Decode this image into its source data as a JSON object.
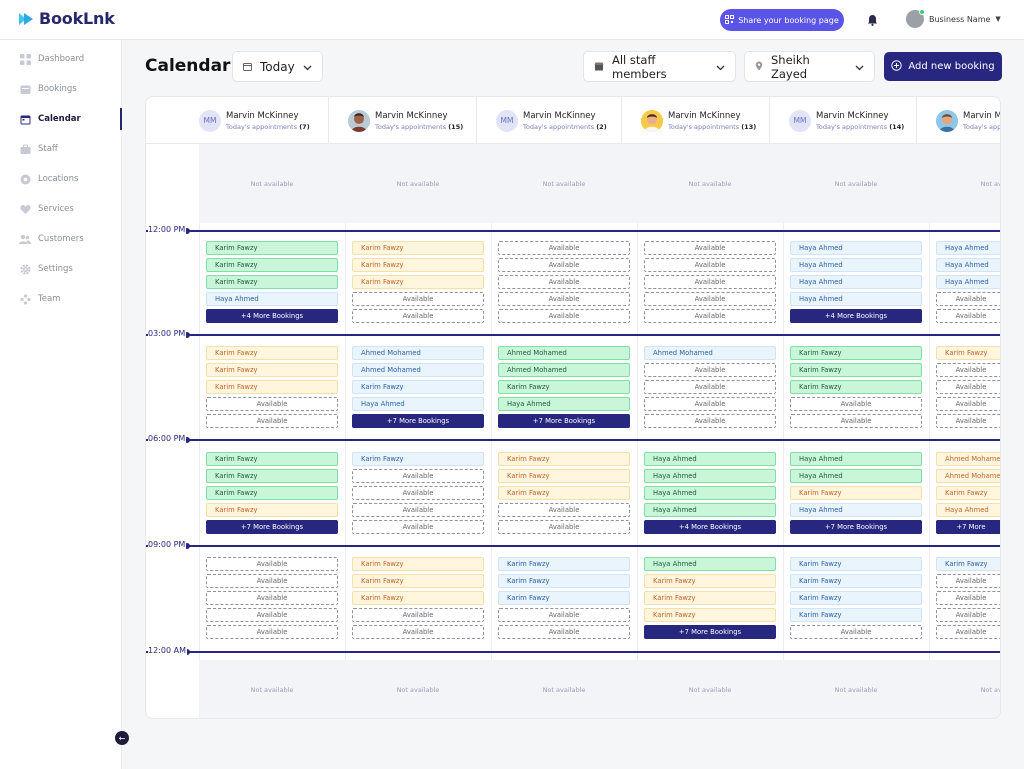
{
  "app": {
    "name": "BookLnk"
  },
  "topbar": {
    "share_label": "Share your booking page",
    "business_name": "Business Name"
  },
  "sidebar": {
    "items": [
      {
        "label": "Dashboard",
        "icon": "grid-icon"
      },
      {
        "label": "Bookings",
        "icon": "bookings-icon"
      },
      {
        "label": "Calendar",
        "icon": "calendar-icon",
        "active": true
      },
      {
        "label": "Staff",
        "icon": "staff-icon"
      },
      {
        "label": "Locations",
        "icon": "location-icon"
      },
      {
        "label": "Services",
        "icon": "heart-icon"
      },
      {
        "label": "Customers",
        "icon": "customers-icon"
      },
      {
        "label": "Settings",
        "icon": "gear-icon"
      },
      {
        "label": "Team",
        "icon": "team-icon"
      }
    ]
  },
  "header": {
    "title": "Calendar",
    "date_filter": "Today",
    "staff_filter": "All staff members",
    "location_filter": "Sheikh Zayed",
    "add_label": "Add new booking"
  },
  "colors": {
    "brand": "#27277f",
    "accent": "#5a55e8",
    "booked_green": "#c9f5d8",
    "booked_yellow": "#fff6dd",
    "booked_blue": "#eaf4fd"
  },
  "calendar": {
    "not_available": "Not available",
    "hours": [
      "12:00 PM",
      "03:00 PM",
      "06:00 PM",
      "09:00 PM",
      "12:00 AM"
    ],
    "staff": [
      {
        "name": "Marvin McKinney",
        "initials": "MM",
        "photo": false,
        "sub": "Today's appointments",
        "count": "(7)"
      },
      {
        "name": "Marvin McKinney",
        "initials": "",
        "photo": "p1",
        "sub": "Today's appointments",
        "count": "(15)"
      },
      {
        "name": "Marvin McKinney",
        "initials": "MM",
        "photo": false,
        "sub": "Today's appointments",
        "count": "(2)"
      },
      {
        "name": "Marvin McKinney",
        "initials": "",
        "photo": "p2",
        "sub": "Today's appointments",
        "count": "(13)"
      },
      {
        "name": "Marvin McKinney",
        "initials": "MM",
        "photo": false,
        "sub": "Today's appointments",
        "count": "(14)"
      },
      {
        "name": "Marvin Mc",
        "initials": "",
        "photo": "p3",
        "sub": "Today's app",
        "count": ""
      }
    ],
    "columns": [
      {
        "blocks": [
          [
            [
              "green",
              "Karim Fawzy"
            ],
            [
              "green",
              "Karim Fawzy"
            ],
            [
              "green",
              "Karim Fawzy"
            ],
            [
              "blue",
              "Haya Ahmed"
            ],
            [
              "more",
              "+4 More Bookings"
            ]
          ],
          [
            [
              "yellow",
              "Karim Fawzy"
            ],
            [
              "yellow",
              "Karim Fawzy"
            ],
            [
              "yellow",
              "Karim Fawzy"
            ],
            [
              "avail",
              "Available"
            ],
            [
              "avail",
              "Available"
            ]
          ],
          [
            [
              "green",
              "Karim Fawzy"
            ],
            [
              "green",
              "Karim Fawzy"
            ],
            [
              "green",
              "Karim Fawzy"
            ],
            [
              "yellow",
              "Karim Fawzy"
            ],
            [
              "more",
              "+7 More Bookings"
            ]
          ],
          [
            [
              "avail",
              "Available"
            ],
            [
              "avail",
              "Available"
            ],
            [
              "avail",
              "Available"
            ],
            [
              "avail",
              "Available"
            ],
            [
              "avail",
              "Available"
            ]
          ]
        ]
      },
      {
        "blocks": [
          [
            [
              "yellow",
              "Karim Fawzy"
            ],
            [
              "yellow",
              "Karim Fawzy"
            ],
            [
              "yellow",
              "Karim Fawzy"
            ],
            [
              "avail",
              "Available"
            ],
            [
              "avail",
              "Available"
            ]
          ],
          [
            [
              "blue",
              "Ahmed Mohamed"
            ],
            [
              "blue",
              "Ahmed Mohamed"
            ],
            [
              "blue",
              "Karim Fawzy"
            ],
            [
              "blue",
              "Haya Ahmed"
            ],
            [
              "more",
              "+7 More Bookings"
            ]
          ],
          [
            [
              "blue",
              "Karim Fawzy"
            ],
            [
              "avail",
              "Available"
            ],
            [
              "avail",
              "Available"
            ],
            [
              "avail",
              "Available"
            ],
            [
              "avail",
              "Available"
            ]
          ],
          [
            [
              "yellow",
              "Karim Fawzy"
            ],
            [
              "yellow",
              "Karim Fawzy"
            ],
            [
              "yellow",
              "Karim Fawzy"
            ],
            [
              "avail",
              "Available"
            ],
            [
              "avail",
              "Available"
            ]
          ]
        ]
      },
      {
        "blocks": [
          [
            [
              "avail",
              "Available"
            ],
            [
              "avail",
              "Available"
            ],
            [
              "avail",
              "Available"
            ],
            [
              "avail",
              "Available"
            ],
            [
              "avail",
              "Available"
            ]
          ],
          [
            [
              "green",
              "Ahmed Mohamed"
            ],
            [
              "green",
              "Ahmed Mohamed"
            ],
            [
              "green",
              "Karim Fawzy"
            ],
            [
              "green",
              "Haya Ahmed"
            ],
            [
              "more",
              "+7 More Bookings"
            ]
          ],
          [
            [
              "yellow",
              "Karim Fawzy"
            ],
            [
              "yellow",
              "Karim Fawzy"
            ],
            [
              "yellow",
              "Karim Fawzy"
            ],
            [
              "avail",
              "Available"
            ],
            [
              "avail",
              "Available"
            ]
          ],
          [
            [
              "blue",
              "Karim Fawzy"
            ],
            [
              "blue",
              "Karim Fawzy"
            ],
            [
              "blue",
              "Karim Fawzy"
            ],
            [
              "avail",
              "Available"
            ],
            [
              "avail",
              "Available"
            ]
          ]
        ]
      },
      {
        "blocks": [
          [
            [
              "avail",
              "Available"
            ],
            [
              "avail",
              "Available"
            ],
            [
              "avail",
              "Available"
            ],
            [
              "avail",
              "Available"
            ],
            [
              "avail",
              "Available"
            ]
          ],
          [
            [
              "blue",
              "Ahmed Mohamed"
            ],
            [
              "avail",
              "Available"
            ],
            [
              "avail",
              "Available"
            ],
            [
              "avail",
              "Available"
            ],
            [
              "avail",
              "Available"
            ]
          ],
          [
            [
              "green",
              "Haya Ahmed"
            ],
            [
              "green",
              "Haya Ahmed"
            ],
            [
              "green",
              "Haya Ahmed"
            ],
            [
              "green",
              "Haya Ahmed"
            ],
            [
              "more",
              "+4 More Bookings"
            ]
          ],
          [
            [
              "green",
              "Haya Ahmed"
            ],
            [
              "yellow",
              "Karim Fawzy"
            ],
            [
              "yellow",
              "Karim Fawzy"
            ],
            [
              "yellow",
              "Karim Fawzy"
            ],
            [
              "more",
              "+7 More Bookings"
            ]
          ]
        ]
      },
      {
        "blocks": [
          [
            [
              "blue",
              "Haya Ahmed"
            ],
            [
              "blue",
              "Haya Ahmed"
            ],
            [
              "blue",
              "Haya Ahmed"
            ],
            [
              "blue",
              "Haya Ahmed"
            ],
            [
              "more",
              "+4 More Bookings"
            ]
          ],
          [
            [
              "green",
              "Karim Fawzy"
            ],
            [
              "green",
              "Karim Fawzy"
            ],
            [
              "green",
              "Karim Fawzy"
            ],
            [
              "avail",
              "Available"
            ],
            [
              "avail",
              "Available"
            ]
          ],
          [
            [
              "green",
              "Haya Ahmed"
            ],
            [
              "green",
              "Haya Ahmed"
            ],
            [
              "yellow",
              "Karim Fawzy"
            ],
            [
              "blue",
              "Haya Ahmed"
            ],
            [
              "more",
              "+7 More Bookings"
            ]
          ],
          [
            [
              "blue",
              "Karim Fawzy"
            ],
            [
              "blue",
              "Karim Fawzy"
            ],
            [
              "blue",
              "Karim Fawzy"
            ],
            [
              "blue",
              "Karim Fawzy"
            ],
            [
              "avail",
              "Available"
            ]
          ]
        ]
      },
      {
        "blocks": [
          [
            [
              "blue",
              "Haya Ahmed"
            ],
            [
              "blue",
              "Haya Ahmed"
            ],
            [
              "blue",
              "Haya Ahmed"
            ],
            [
              "avail",
              "Available"
            ],
            [
              "avail",
              "Available"
            ]
          ],
          [
            [
              "yellow",
              "Karim Fawzy"
            ],
            [
              "avail",
              "Available"
            ],
            [
              "avail",
              "Available"
            ],
            [
              "avail",
              "Available"
            ],
            [
              "avail",
              "Available"
            ]
          ],
          [
            [
              "yellow",
              "Ahmed Mohamed"
            ],
            [
              "yellow",
              "Ahmed Mohamed"
            ],
            [
              "yellow",
              "Karim Fawzy"
            ],
            [
              "yellow",
              "Haya Ahmed"
            ],
            [
              "more",
              "+7 More"
            ]
          ],
          [
            [
              "blue",
              "Karim Fawzy"
            ],
            [
              "avail",
              "Available"
            ],
            [
              "avail",
              "Available"
            ],
            [
              "avail",
              "Available"
            ],
            [
              "avail",
              "Available"
            ]
          ]
        ]
      }
    ]
  }
}
